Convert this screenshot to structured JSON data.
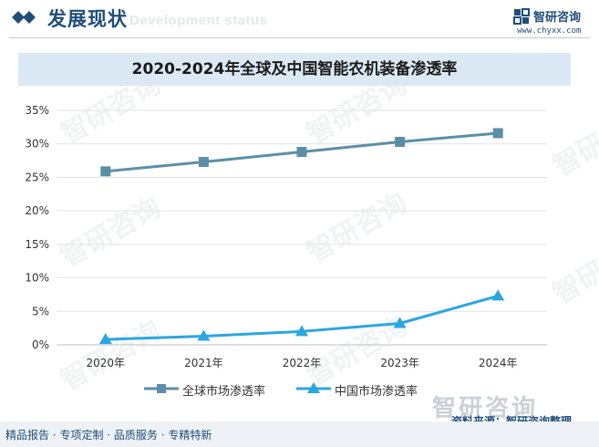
{
  "header": {
    "title": "发展现状",
    "subtitle": "Development status",
    "brand_name": "智研咨询",
    "brand_url": "www.chyxx.com"
  },
  "chart_data": {
    "type": "line",
    "title": "2020-2024年全球及中国智能农机装备渗透率",
    "categories": [
      "2020年",
      "2021年",
      "2022年",
      "2023年",
      "2024年"
    ],
    "ylim": [
      0,
      35
    ],
    "yticks": [
      0,
      5,
      10,
      15,
      20,
      25,
      30,
      35
    ],
    "ytick_labels": [
      "0%",
      "5%",
      "10%",
      "15%",
      "20%",
      "25%",
      "30%",
      "35%"
    ],
    "grid": true,
    "legend_position": "bottom",
    "series": [
      {
        "name": "全球市场渗透率",
        "marker": "square",
        "color": "#5b8fa8",
        "values": [
          25.9,
          27.3,
          28.8,
          30.3,
          31.6
        ]
      },
      {
        "name": "中国市场渗透率",
        "marker": "triangle",
        "color": "#2aa7e0",
        "values": [
          0.8,
          1.3,
          2.0,
          3.2,
          7.3
        ]
      }
    ]
  },
  "footer": {
    "left_text": "精品报告 · 专项定制 · 品质服务 · 专精特新",
    "source_text": "资料来源：智研咨询整理",
    "logo_text": "智研咨询"
  },
  "watermark_text": "智研咨询"
}
